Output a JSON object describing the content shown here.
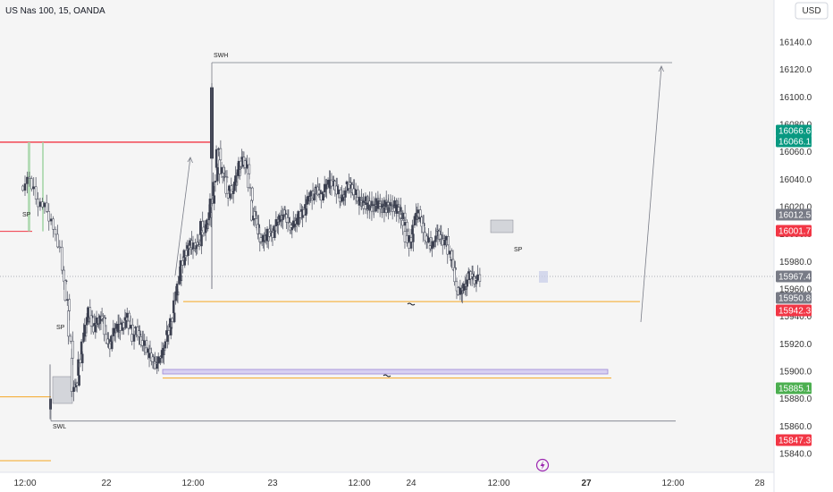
{
  "header": {
    "title": "US Nas 100, 15, OANDA",
    "currency_button": "USD"
  },
  "colors": {
    "up": "#3b3f4f",
    "down": "#ffffff",
    "wick": "#5a5e6b",
    "green_badge": "#089981",
    "red_badge": "#f23645",
    "gray_badge": "#787b86",
    "light_green_badge": "#4caf50",
    "orange_line": "#f5a623",
    "red_line": "#f23645",
    "purple_line": "#9c88d6"
  },
  "chart_data": {
    "type": "candlestick",
    "symbol": "US Nas 100",
    "interval": "15",
    "source": "OANDA",
    "y_axis": {
      "ylim": [
        15835,
        16150
      ],
      "ticks": [
        15840.0,
        15860.0,
        15880.0,
        15900.0,
        15920.0,
        15940.0,
        15960.0,
        15980.0,
        16000.0,
        16020.0,
        16040.0,
        16060.0,
        16080.0,
        16100.0,
        16120.0,
        16140.0
      ],
      "tick_labels": [
        "15840.0",
        "15860.0",
        "15880.0",
        "15900.0",
        "15920.0",
        "15940.0",
        "15960.0",
        "15980.0",
        "16000.0",
        "16020.0",
        "16040.0",
        "16060.0",
        "16080.0",
        "16100.0",
        "16120.0",
        "16140.0"
      ]
    },
    "x_axis": {
      "labels": [
        "12:00",
        "22",
        "12:00",
        "23",
        "12:00",
        "24",
        "12:00",
        "27",
        "12:00",
        "28"
      ],
      "bold_label": "27",
      "positions": [
        0.0,
        0.5,
        1.0,
        1.5,
        2.0,
        2.5,
        3.0,
        3.5,
        4.0,
        4.5
      ]
    },
    "path_close": [
      [
        0.0,
        16035
      ],
      [
        0.04,
        16040
      ],
      [
        0.08,
        16025
      ],
      [
        0.12,
        16022
      ],
      [
        0.16,
        16015
      ],
      [
        0.2,
        16000
      ],
      [
        0.24,
        15975
      ],
      [
        0.26,
        15955
      ],
      [
        0.28,
        15935
      ],
      [
        0.3,
        15890
      ],
      [
        0.32,
        15885
      ],
      [
        0.34,
        15905
      ],
      [
        0.36,
        15920
      ],
      [
        0.38,
        15935
      ],
      [
        0.4,
        15945
      ],
      [
        0.42,
        15930
      ],
      [
        0.44,
        15935
      ],
      [
        0.46,
        15935
      ],
      [
        0.48,
        15945
      ],
      [
        0.5,
        15925
      ],
      [
        0.52,
        15918
      ],
      [
        0.54,
        15925
      ],
      [
        0.56,
        15935
      ],
      [
        0.58,
        15930
      ],
      [
        0.6,
        15932
      ],
      [
        0.62,
        15940
      ],
      [
        0.64,
        15935
      ],
      [
        0.66,
        15925
      ],
      [
        0.68,
        15930
      ],
      [
        0.7,
        15925
      ],
      [
        0.72,
        15920
      ],
      [
        0.74,
        15918
      ],
      [
        0.76,
        15910
      ],
      [
        0.78,
        15905
      ],
      [
        0.8,
        15905
      ],
      [
        0.82,
        15910
      ],
      [
        0.84,
        15920
      ],
      [
        0.86,
        15925
      ],
      [
        0.88,
        15935
      ],
      [
        0.9,
        15950
      ],
      [
        0.92,
        15965
      ],
      [
        0.94,
        15975
      ],
      [
        0.96,
        15985
      ],
      [
        0.98,
        15992
      ],
      [
        1.0,
        15990
      ],
      [
        1.02,
        15995
      ],
      [
        1.04,
        15985
      ],
      [
        1.06,
        16010
      ],
      [
        1.08,
        16000
      ],
      [
        1.1,
        16012
      ],
      [
        1.12,
        16020
      ],
      [
        1.14,
        16030
      ],
      [
        1.16,
        16065
      ],
      [
        1.18,
        16045
      ],
      [
        1.2,
        16050
      ],
      [
        1.22,
        16025
      ],
      [
        1.24,
        16035
      ],
      [
        1.26,
        16030
      ],
      [
        1.28,
        16045
      ],
      [
        1.3,
        16048
      ],
      [
        1.32,
        16055
      ],
      [
        1.34,
        16050
      ],
      [
        1.36,
        16040
      ],
      [
        1.38,
        16015
      ],
      [
        1.4,
        16010
      ],
      [
        1.42,
        16000
      ],
      [
        1.44,
        15995
      ],
      [
        1.46,
        15998
      ],
      [
        1.48,
        16000
      ],
      [
        1.5,
        15998
      ],
      [
        1.52,
        16005
      ],
      [
        1.54,
        16010
      ],
      [
        1.56,
        16015
      ],
      [
        1.58,
        16012
      ],
      [
        1.6,
        16008
      ],
      [
        1.62,
        16005
      ],
      [
        1.64,
        16010
      ],
      [
        1.66,
        16012
      ],
      [
        1.68,
        16015
      ],
      [
        1.7,
        16020
      ],
      [
        1.72,
        16030
      ],
      [
        1.74,
        16028
      ],
      [
        1.76,
        16032
      ],
      [
        1.78,
        16028
      ],
      [
        1.8,
        16030
      ],
      [
        1.82,
        16040
      ],
      [
        1.84,
        16035
      ],
      [
        1.86,
        16038
      ],
      [
        1.88,
        16030
      ],
      [
        1.9,
        16025
      ],
      [
        1.92,
        16030
      ],
      [
        1.94,
        16035
      ],
      [
        1.96,
        16036
      ],
      [
        1.98,
        16030
      ],
      [
        2.0,
        16028
      ],
      [
        2.02,
        16022
      ],
      [
        2.04,
        16020
      ],
      [
        2.06,
        16025
      ],
      [
        2.08,
        16020
      ],
      [
        2.1,
        16022
      ],
      [
        2.12,
        16018
      ],
      [
        2.14,
        16020
      ],
      [
        2.16,
        16022
      ],
      [
        2.18,
        16025
      ],
      [
        2.2,
        16020
      ],
      [
        2.22,
        16018
      ],
      [
        2.24,
        16020
      ],
      [
        2.26,
        16022
      ],
      [
        2.28,
        16020
      ],
      [
        2.3,
        16018
      ],
      [
        2.32,
        16020
      ],
      [
        2.34,
        16022
      ],
      [
        2.36,
        16020
      ],
      [
        2.38,
        16018
      ],
      [
        2.4,
        16015
      ],
      [
        2.42,
        16012
      ],
      [
        2.44,
        16010
      ],
      [
        2.46,
        16000
      ],
      [
        2.48,
        15990
      ],
      [
        2.5,
        15995
      ],
      [
        2.52,
        16005
      ],
      [
        2.54,
        16020
      ],
      [
        2.56,
        16010
      ],
      [
        2.58,
        16000
      ],
      [
        2.6,
        15995
      ],
      [
        2.62,
        15990
      ],
      [
        2.64,
        15998
      ],
      [
        2.66,
        16000
      ],
      [
        2.68,
        15995
      ],
      [
        2.7,
        15998
      ],
      [
        2.72,
        15990
      ],
      [
        2.74,
        15980
      ],
      [
        2.76,
        15965
      ],
      [
        2.78,
        15955
      ],
      [
        2.8,
        15960
      ],
      [
        2.82,
        15965
      ],
      [
        2.84,
        15970
      ],
      [
        2.86,
        15968
      ],
      [
        2.88,
        15967.4
      ]
    ],
    "price_badges": [
      {
        "value": 16066.6,
        "label": "16066.6",
        "color": "#089981"
      },
      {
        "value": 16066.1,
        "label": "16066.1",
        "color": "#089981"
      },
      {
        "value": 16012.5,
        "label": "16012.5",
        "color": "#787b86"
      },
      {
        "value": 16001.7,
        "label": "16001.7",
        "color": "#f23645"
      },
      {
        "value": 15967.4,
        "label": "15967.4",
        "color": "#787b86"
      },
      {
        "value": 15950.8,
        "label": "15950.8",
        "color": "#787b86"
      },
      {
        "value": 15942.3,
        "label": "15942.3",
        "color": "#f23645"
      },
      {
        "value": 15885.1,
        "label": "15885.1",
        "color": "#4caf50"
      },
      {
        "value": 15847.3,
        "label": "15847.3",
        "color": "#f23645"
      }
    ],
    "annotations": {
      "swh_label": "SWH",
      "swl_label": "SWL",
      "sp_labels": [
        "SP",
        "SP",
        "SP"
      ],
      "swh_price": 16125,
      "swl_price": 15865,
      "orange_level_1": 15950.8,
      "orange_level_2": 15895,
      "orange_level_3": 15880,
      "purple_level": 15900,
      "red_level_1": 16067,
      "red_level_2": 16002
    }
  },
  "toolbar": {
    "alert_icon": "lightning-icon"
  }
}
